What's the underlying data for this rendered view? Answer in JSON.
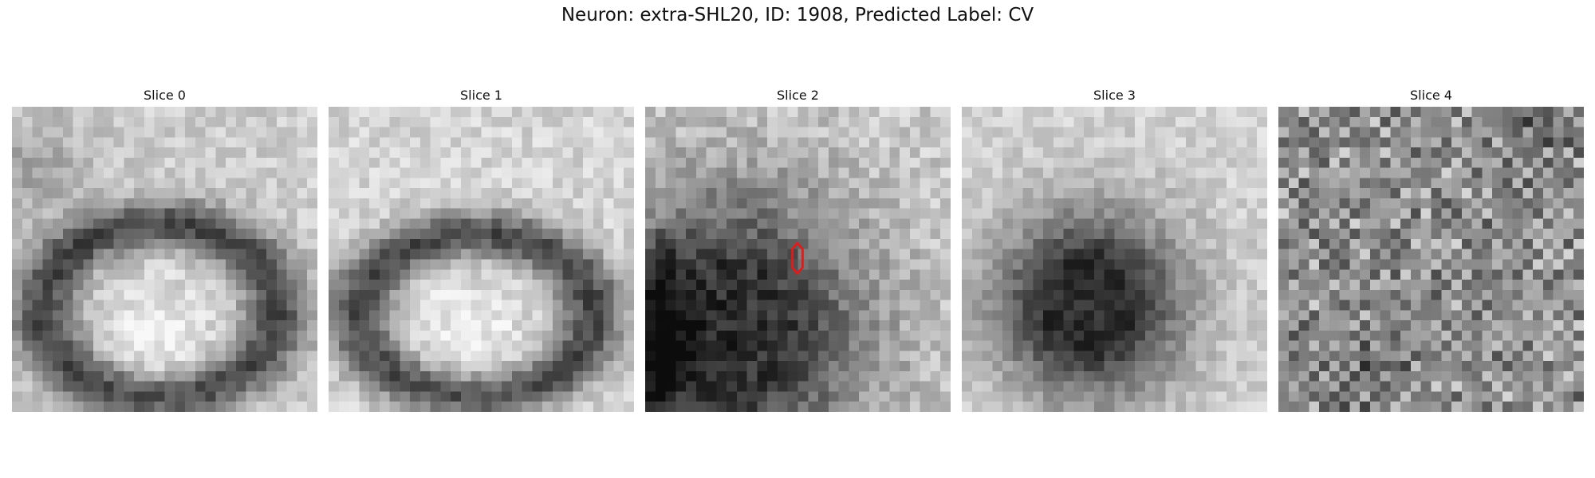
{
  "figure": {
    "title": "Neuron: extra-SHL20, ID: 1908, Predicted Label: CV",
    "colormap": "grayscale"
  },
  "slices": [
    {
      "label": "Slice 0",
      "content": "dark ring around a bright lumen"
    },
    {
      "label": "Slice 1",
      "content": "dark ring around a bright lumen"
    },
    {
      "label": "Slice 2",
      "content": "dark blob lower-left with marker",
      "marker_color": "#e11b1b"
    },
    {
      "label": "Slice 3",
      "content": "dark round blob"
    },
    {
      "label": "Slice 4",
      "content": "high-frequency noise texture"
    }
  ]
}
